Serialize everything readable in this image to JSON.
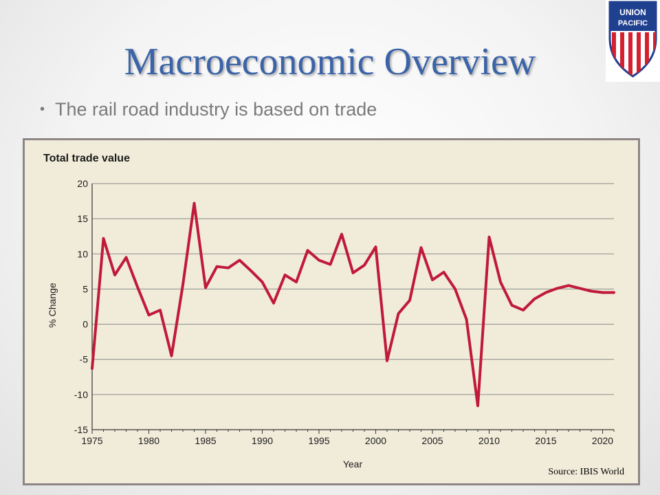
{
  "slide": {
    "title": "Macroeconomic Overview",
    "bullet": "The rail road industry is based on trade",
    "source": "Source: IBIS World"
  },
  "logo": {
    "line1": "UNION",
    "line2": "PACIFIC",
    "icon": "union-pacific-shield",
    "colors": {
      "blue": "#1f3f8f",
      "red": "#d5202f",
      "white": "#ffffff"
    }
  },
  "colors": {
    "title": "#3a63a8",
    "line": "#c01a3a",
    "chart_bg": "#f1ecda",
    "grid": "#8a8a8a"
  },
  "chart_data": {
    "type": "line",
    "title": "Total trade value",
    "xlabel": "Year",
    "ylabel": "% Change",
    "xlim": [
      1975,
      2021
    ],
    "ylim": [
      -15,
      20
    ],
    "x_ticks": [
      1975,
      1980,
      1985,
      1990,
      1995,
      2000,
      2005,
      2010,
      2015,
      2020
    ],
    "y_ticks": [
      20,
      15,
      10,
      5,
      0,
      -5,
      -10,
      -15
    ],
    "grid": "horizontal",
    "series": [
      {
        "x": [
          1975,
          1976,
          1977,
          1978,
          1979,
          1980,
          1981,
          1982,
          1983,
          1984,
          1985,
          1986,
          1987,
          1988,
          1989,
          1990,
          1991,
          1992,
          1993,
          1994,
          1995,
          1996,
          1997,
          1998,
          1999,
          2000,
          2001,
          2002,
          2003,
          2004,
          2005,
          2006,
          2007,
          2008,
          2009,
          2010,
          2011,
          2012,
          2013,
          2014,
          2015,
          2016,
          2017,
          2018,
          2019,
          2020,
          2021
        ],
        "values": [
          -6.3,
          12.2,
          7.0,
          9.5,
          5.3,
          1.3,
          2.0,
          -4.5,
          5.6,
          17.2,
          5.2,
          8.2,
          8.0,
          9.1,
          7.6,
          6.0,
          3.0,
          7.0,
          6.0,
          10.5,
          9.1,
          8.5,
          12.8,
          7.3,
          8.4,
          11.0,
          -5.2,
          1.5,
          3.4,
          10.9,
          6.3,
          7.4,
          5.0,
          0.7,
          -11.6,
          12.4,
          6.0,
          2.7,
          2.0,
          3.6,
          4.5,
          5.1,
          5.5,
          5.1,
          4.7,
          4.5,
          4.5
        ]
      }
    ]
  }
}
